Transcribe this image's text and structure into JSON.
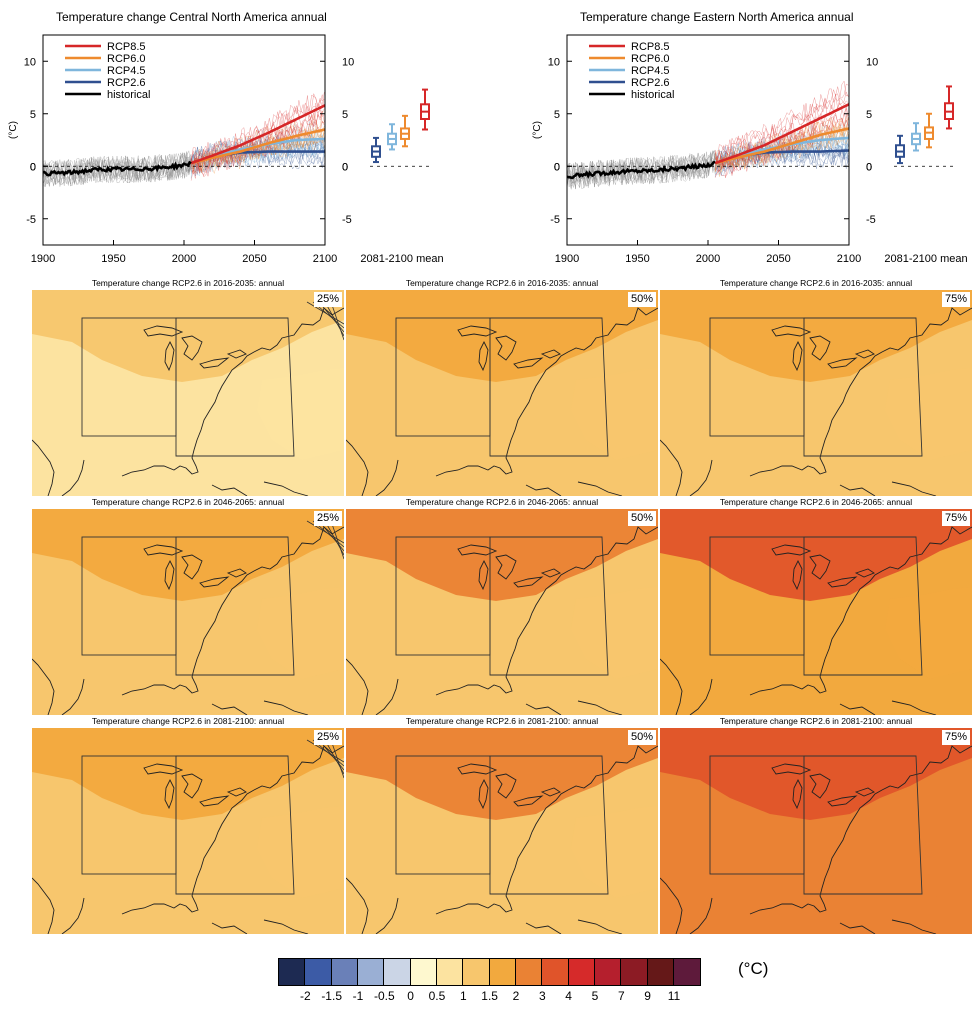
{
  "colors": {
    "rcp85": "#d62728",
    "rcp60": "#ee8a2e",
    "rcp45": "#7fb6dc",
    "rcp26": "#2f4f8f",
    "historical": "#000000",
    "hist_spread": "#8a8a8a"
  },
  "chart_data": [
    {
      "type": "line",
      "title": "Temperature change Central North America annual",
      "ylabel": "(°C)",
      "xlim": [
        1900,
        2100
      ],
      "ylim": [
        -7.5,
        12.5
      ],
      "x_ticks": [
        "1900",
        "1950",
        "2000",
        "2050",
        "2100"
      ],
      "y_ticks": [
        "10",
        "5",
        "0",
        "-5"
      ],
      "legend": [
        "RCP8.5",
        "RCP6.0",
        "RCP4.5",
        "RCP2.6",
        "historical"
      ],
      "legend_position": "top-left",
      "series": [
        {
          "name": "historical",
          "x": [
            1900,
            1920,
            1940,
            1960,
            1980,
            2000,
            2005
          ],
          "y": [
            -0.7,
            -0.6,
            -0.3,
            -0.3,
            -0.2,
            0.1,
            0.3
          ]
        },
        {
          "name": "RCP2.6",
          "x": [
            2005,
            2020,
            2040,
            2060,
            2080,
            2100
          ],
          "y": [
            0.3,
            0.9,
            1.3,
            1.4,
            1.4,
            1.4
          ]
        },
        {
          "name": "RCP4.5",
          "x": [
            2005,
            2020,
            2040,
            2060,
            2080,
            2100
          ],
          "y": [
            0.3,
            0.9,
            1.6,
            2.1,
            2.5,
            2.6
          ]
        },
        {
          "name": "RCP6.0",
          "x": [
            2005,
            2020,
            2040,
            2060,
            2080,
            2100
          ],
          "y": [
            0.3,
            0.8,
            1.4,
            2.2,
            2.9,
            3.5
          ]
        },
        {
          "name": "RCP8.5",
          "x": [
            2005,
            2020,
            2040,
            2060,
            2080,
            2100
          ],
          "y": [
            0.3,
            1.0,
            2.0,
            3.2,
            4.5,
            5.8
          ]
        }
      ],
      "boxplot": {
        "xlabel": "2081-2100 mean",
        "boxes": [
          {
            "name": "RCP2.6",
            "median": 1.4,
            "q1": 0.9,
            "q3": 1.9,
            "whisker_low": 0.4,
            "whisker_high": 2.7
          },
          {
            "name": "RCP4.5",
            "median": 2.6,
            "q1": 2.1,
            "q3": 3.1,
            "whisker_low": 1.6,
            "whisker_high": 4.0
          },
          {
            "name": "RCP6.0",
            "median": 3.1,
            "q1": 2.6,
            "q3": 3.6,
            "whisker_low": 1.9,
            "whisker_high": 4.8
          },
          {
            "name": "RCP8.5",
            "median": 5.2,
            "q1": 4.5,
            "q3": 5.9,
            "whisker_low": 3.5,
            "whisker_high": 7.3
          }
        ]
      }
    },
    {
      "type": "line",
      "title": "Temperature change Eastern North America annual",
      "ylabel": "(°C)",
      "xlim": [
        1900,
        2100
      ],
      "ylim": [
        -7.5,
        12.5
      ],
      "x_ticks": [
        "1900",
        "1950",
        "2000",
        "2050",
        "2100"
      ],
      "y_ticks": [
        "10",
        "5",
        "0",
        "-5"
      ],
      "legend": [
        "RCP8.5",
        "RCP6.0",
        "RCP4.5",
        "RCP2.6",
        "historical"
      ],
      "legend_position": "top-left",
      "series": [
        {
          "name": "historical",
          "x": [
            1900,
            1920,
            1940,
            1960,
            1980,
            2000,
            2005
          ],
          "y": [
            -1.0,
            -0.7,
            -0.5,
            -0.4,
            -0.2,
            0.1,
            0.3
          ]
        },
        {
          "name": "RCP2.6",
          "x": [
            2005,
            2020,
            2040,
            2060,
            2080,
            2100
          ],
          "y": [
            0.3,
            0.9,
            1.3,
            1.4,
            1.4,
            1.5
          ]
        },
        {
          "name": "RCP4.5",
          "x": [
            2005,
            2020,
            2040,
            2060,
            2080,
            2100
          ],
          "y": [
            0.3,
            0.9,
            1.6,
            2.1,
            2.5,
            2.7
          ]
        },
        {
          "name": "RCP6.0",
          "x": [
            2005,
            2020,
            2040,
            2060,
            2080,
            2100
          ],
          "y": [
            0.3,
            0.8,
            1.4,
            2.2,
            3.0,
            3.6
          ]
        },
        {
          "name": "RCP8.5",
          "x": [
            2005,
            2020,
            2040,
            2060,
            2080,
            2100
          ],
          "y": [
            0.3,
            1.0,
            2.0,
            3.3,
            4.6,
            5.9
          ]
        }
      ],
      "boxplot": {
        "xlabel": "2081-2100 mean",
        "boxes": [
          {
            "name": "RCP2.6",
            "median": 1.4,
            "q1": 0.9,
            "q3": 2.0,
            "whisker_low": 0.3,
            "whisker_high": 2.9
          },
          {
            "name": "RCP4.5",
            "median": 2.6,
            "q1": 2.1,
            "q3": 3.1,
            "whisker_low": 1.5,
            "whisker_high": 4.1
          },
          {
            "name": "RCP6.0",
            "median": 3.2,
            "q1": 2.6,
            "q3": 3.7,
            "whisker_low": 1.8,
            "whisker_high": 5.0
          },
          {
            "name": "RCP8.5",
            "median": 5.2,
            "q1": 4.5,
            "q3": 6.0,
            "whisker_low": 3.6,
            "whisker_high": 7.6
          }
        ]
      }
    },
    {
      "type": "heatmap",
      "maps": [
        {
          "title": "Temperature change RCP2.6 in 2016-2035: annual",
          "percentile": "25%",
          "base_bin": "0.5",
          "hot_bin": "1",
          "hatched": true
        },
        {
          "title": "Temperature change RCP2.6 in 2016-2035: annual",
          "percentile": "50%",
          "base_bin": "1",
          "hot_bin": "1.5",
          "hatched": false
        },
        {
          "title": "Temperature change RCP2.6 in 2016-2035: annual",
          "percentile": "75%",
          "base_bin": "1",
          "hot_bin": "1.5",
          "hatched": false
        },
        {
          "title": "Temperature change RCP2.6 in 2046-2065: annual",
          "percentile": "25%",
          "base_bin": "1",
          "hot_bin": "1.5",
          "hatched": true
        },
        {
          "title": "Temperature change RCP2.6 in 2046-2065: annual",
          "percentile": "50%",
          "base_bin": "1",
          "hot_bin": "2",
          "hatched": false
        },
        {
          "title": "Temperature change RCP2.6 in 2046-2065: annual",
          "percentile": "75%",
          "base_bin": "1.5",
          "hot_bin": "3",
          "hatched": false
        },
        {
          "title": "Temperature change RCP2.6 in 2081-2100: annual",
          "percentile": "25%",
          "base_bin": "1",
          "hot_bin": "1.5",
          "hatched": true
        },
        {
          "title": "Temperature change RCP2.6 in 2081-2100: annual",
          "percentile": "50%",
          "base_bin": "1",
          "hot_bin": "2",
          "hatched": false
        },
        {
          "title": "Temperature change RCP2.6 in 2081-2100: annual",
          "percentile": "75%",
          "base_bin": "2",
          "hot_bin": "3",
          "hatched": false
        }
      ]
    }
  ],
  "colorbar": {
    "unit": "(°C)",
    "ticks": [
      "-2",
      "-1.5",
      "-1",
      "-0.5",
      "0",
      "0.5",
      "1",
      "1.5",
      "2",
      "3",
      "4",
      "5",
      "7",
      "9",
      "11"
    ],
    "colors": [
      "#1d2a52",
      "#3c5ba6",
      "#6a80b8",
      "#9aafd4",
      "#cbd5e6",
      "#fef8cf",
      "#fce3a0",
      "#f7c66d",
      "#f2a93e",
      "#ea8234",
      "#e0542a",
      "#d62a2a",
      "#b51f2d",
      "#8c1b24",
      "#651818",
      "#5e1a3b"
    ],
    "bin_values": [
      "-2",
      "-1.5",
      "-1",
      "-0.5",
      "0",
      "0.5",
      "1",
      "1.5",
      "2",
      "3",
      "4",
      "5",
      "7",
      "9",
      "11"
    ]
  }
}
